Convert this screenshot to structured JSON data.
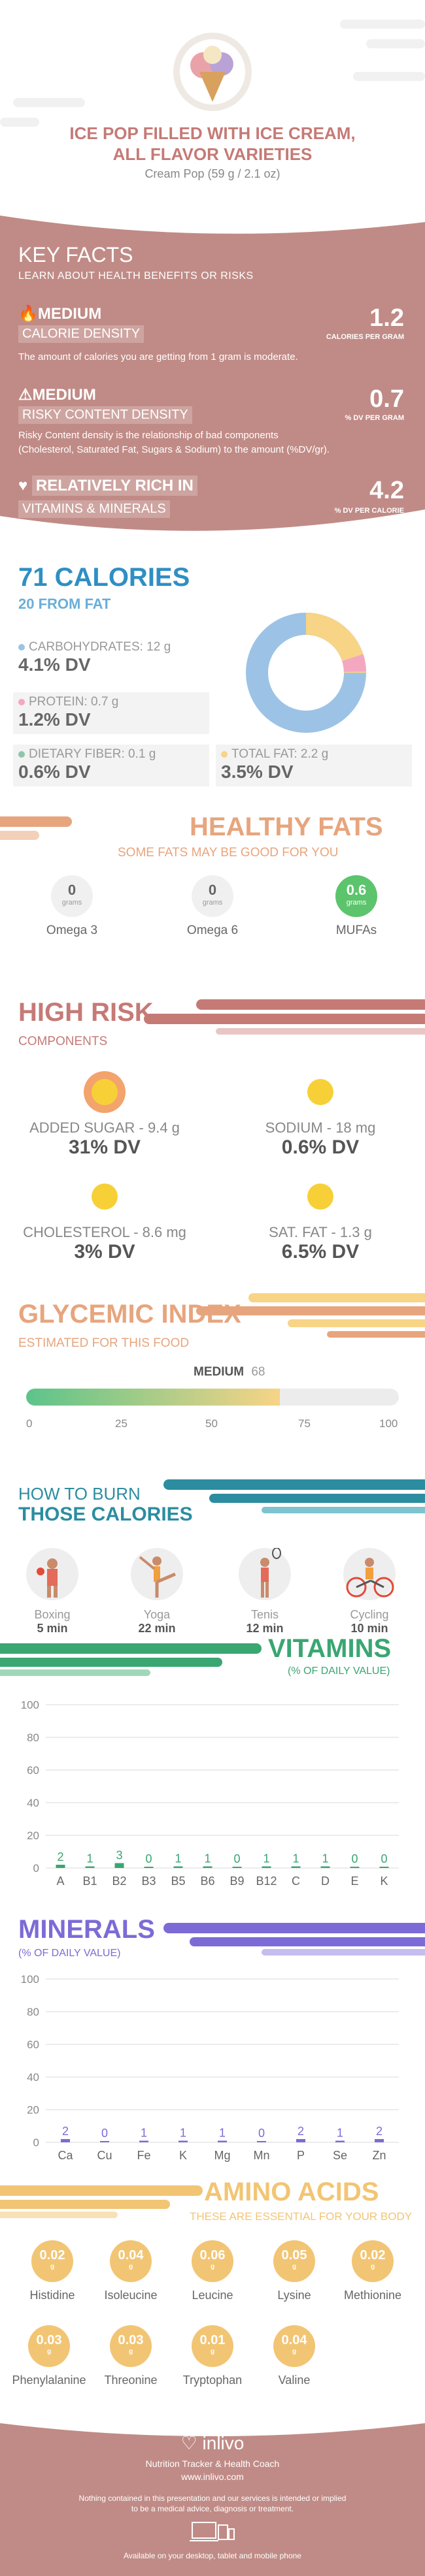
{
  "header": {
    "title_line1": "ICE POP FILLED WITH ICE CREAM,",
    "title_line2": "ALL FLAVOR VARIETIES",
    "subtitle": "Cream Pop (59 g / 2.1 oz)"
  },
  "key_facts": {
    "title": "KEY FACTS",
    "subtitle": "LEARN ABOUT HEALTH BENEFITS OR RISKS",
    "items": [
      {
        "level": "MEDIUM",
        "label": "CALORIE DENSITY",
        "value": "1.2",
        "unit": "CALORIES PER GRAM",
        "desc": "The amount of calories you are getting from 1 gram is moderate.",
        "icon": "flame-icon"
      },
      {
        "level": "MEDIUM",
        "label": "RISKY CONTENT DENSITY",
        "value": "0.7",
        "unit": "% DV PER GRAM",
        "desc1": "Risky Content density is the relationship of bad components",
        "desc2": "(Cholesterol, Saturated Fat, Sugars & Sodium) to the amount (%DV/gr).",
        "icon": "warning-icon"
      },
      {
        "level": "RELATIVELY RICH IN",
        "label": "VITAMINS & MINERALS",
        "value": "4.2",
        "unit": "% DV PER CALORIE",
        "icon": "heart-pulse-icon"
      }
    ]
  },
  "calories": {
    "title": "71 CALORIES",
    "subtitle": "20 FROM FAT",
    "carbs_label": "CARBOHYDRATES: 12 g",
    "carbs_dv": "4.1% DV",
    "protein_label": "PROTEIN: 0.7 g",
    "protein_dv": "1.2% DV",
    "fiber_label": "DIETARY FIBER: 0.1 g",
    "fiber_dv": "0.6% DV",
    "fat_label": "TOTAL FAT: 2.2 g",
    "fat_dv": "3.5% DV",
    "colors": {
      "carbs": "#9cc3e6",
      "protein": "#f4a7c0",
      "fiber": "#8cc6ab",
      "fat": "#f7d486"
    }
  },
  "healthy_fats": {
    "title": "HEALTHY FATS",
    "subtitle": "SOME FATS MAY BE GOOD FOR YOU",
    "items": [
      {
        "value": "0",
        "unit": "grams",
        "name": "Omega 3"
      },
      {
        "value": "0",
        "unit": "grams",
        "name": "Omega 6"
      },
      {
        "value": "0.6",
        "unit": "grams",
        "name": "MUFAs"
      }
    ]
  },
  "high_risk": {
    "title": "HIGH RISK",
    "subtitle": "COMPONENTS",
    "items": [
      {
        "label": "ADDED SUGAR - 9.4 g",
        "dv": "31% DV"
      },
      {
        "label": "SODIUM - 18 mg",
        "dv": "0.6% DV"
      },
      {
        "label": "CHOLESTEROL - 8.6 mg",
        "dv": "3% DV"
      },
      {
        "label": "SAT. FAT - 1.3 g",
        "dv": "6.5% DV"
      }
    ]
  },
  "glycemic": {
    "title": "GLYCEMIC INDEX",
    "subtitle": "ESTIMATED FOR THIS FOOD",
    "level": "MEDIUM",
    "value": "68",
    "value_num": 68,
    "ticks": [
      "0",
      "25",
      "50",
      "75",
      "100"
    ]
  },
  "burn": {
    "title1": "HOW TO BURN",
    "title2": "THOSE CALORIES",
    "items": [
      {
        "name": "Boxing",
        "time": "5 min"
      },
      {
        "name": "Yoga",
        "time": "22 min"
      },
      {
        "name": "Tenis",
        "time": "12 min"
      },
      {
        "name": "Cycling",
        "time": "10 min"
      }
    ]
  },
  "vitamins": {
    "title": "VITAMINS",
    "subtitle": "(% OF DAILY VALUE)"
  },
  "minerals": {
    "title": "MINERALS",
    "subtitle": "(% OF DAILY VALUE)"
  },
  "chart_data": [
    {
      "type": "bar",
      "categories": [
        "A",
        "B1",
        "B2",
        "B3",
        "B5",
        "B6",
        "B9",
        "B12",
        "C",
        "D",
        "E",
        "K"
      ],
      "values": [
        2,
        1,
        3,
        0,
        1,
        1,
        0,
        1,
        1,
        1,
        0,
        0
      ],
      "ylim": [
        0,
        100
      ],
      "yticks": [
        "0",
        "20",
        "40",
        "60",
        "80",
        "100"
      ],
      "color": "#3aa672"
    },
    {
      "type": "bar",
      "categories": [
        "Ca",
        "Cu",
        "Fe",
        "K",
        "Mg",
        "Mn",
        "P",
        "Se",
        "Zn"
      ],
      "values": [
        2,
        0,
        1,
        1,
        1,
        0,
        2,
        1,
        2
      ],
      "ylim": [
        0,
        100
      ],
      "yticks": [
        "0",
        "20",
        "40",
        "60",
        "80",
        "100"
      ],
      "color": "#7c6bd6"
    }
  ],
  "amino": {
    "title": "AMINO ACIDS",
    "subtitle": "THESE ARE ESSENTIAL FOR YOUR BODY",
    "unit": "g",
    "items": [
      {
        "value": "0.02",
        "name": "Histidine"
      },
      {
        "value": "0.04",
        "name": "Isoleucine"
      },
      {
        "value": "0.06",
        "name": "Leucine"
      },
      {
        "value": "0.05",
        "name": "Lysine"
      },
      {
        "value": "0.02",
        "name": "Methionine"
      },
      {
        "value": "0.03",
        "name": "Phenylalanine"
      },
      {
        "value": "0.03",
        "name": "Threonine"
      },
      {
        "value": "0.01",
        "name": "Tryptophan"
      },
      {
        "value": "0.04",
        "name": "Valine"
      }
    ]
  },
  "footer": {
    "brand": "inlivo",
    "tagline": "Nutrition Tracker & Health Coach",
    "url": "www.inlivo.com",
    "disclaimer1": "Nothing contained in this presentation and our services is intended or implied",
    "disclaimer2": "to be a medical advice, diagnosis or treatment.",
    "available": "Available on your desktop, tablet and mobile phone"
  }
}
